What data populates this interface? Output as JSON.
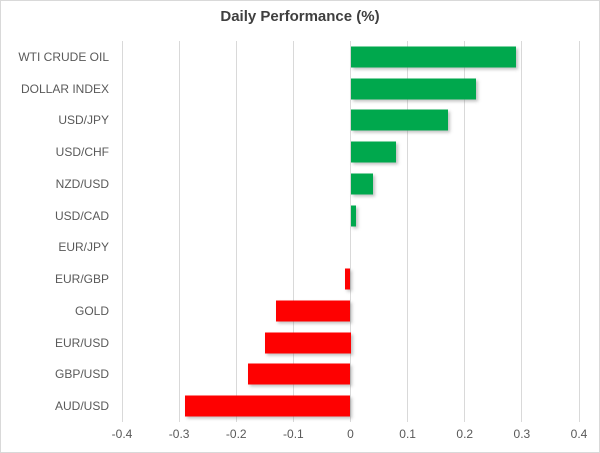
{
  "chart_data": {
    "type": "bar",
    "orientation": "horizontal",
    "title": "Daily Performance (%)",
    "categories": [
      "WTI CRUDE OIL",
      "DOLLAR INDEX",
      "USD/JPY",
      "USD/CHF",
      "NZD/USD",
      "USD/CAD",
      "EUR/JPY",
      "EUR/GBP",
      "GOLD",
      "EUR/USD",
      "GBP/USD",
      "AUD/USD"
    ],
    "values": [
      0.29,
      0.22,
      0.17,
      0.08,
      0.04,
      0.01,
      0.0,
      -0.01,
      -0.13,
      -0.15,
      -0.18,
      -0.29
    ],
    "xlim": [
      -0.4,
      0.4
    ],
    "x_ticks": [
      "-0.4",
      "-0.3",
      "-0.2",
      "-0.1",
      "0",
      "0.1",
      "0.2",
      "0.3",
      "0.4"
    ],
    "grid": true,
    "legend": "none",
    "colors": {
      "positive": "#00a84d",
      "negative": "#fe0101",
      "gridline": "#d9d9d9",
      "title": "#3f3f3f",
      "labels": "#595959",
      "border": "#d9d9d9"
    }
  }
}
